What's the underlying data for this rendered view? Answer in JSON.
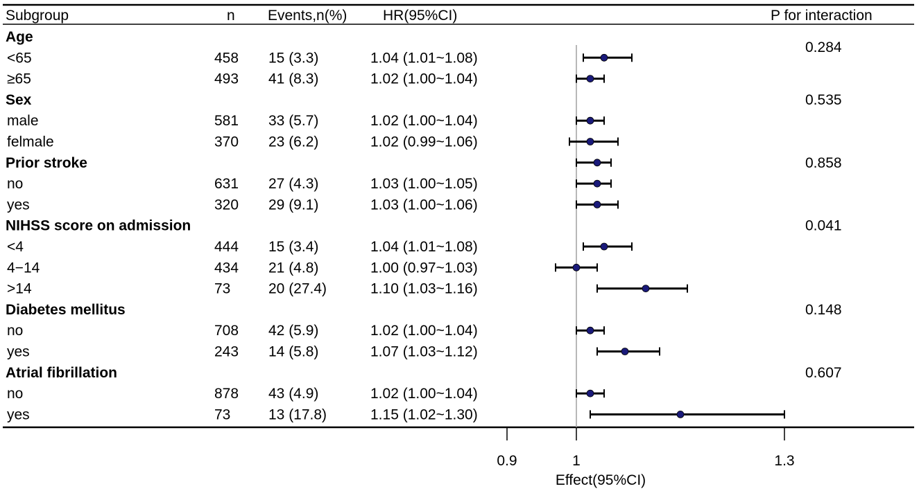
{
  "chart_data": {
    "type": "forest",
    "header": {
      "subgroup": "Subgroup",
      "n": "n",
      "events": "Events,n(%)",
      "hr": "HR(95%CI)",
      "p": "P for interaction"
    },
    "rows": [
      {
        "kind": "group",
        "label": "Age",
        "p": "0.284"
      },
      {
        "kind": "item",
        "label": "<65",
        "n": "458",
        "events": "15 (3.3)",
        "hr_text": "1.04 (1.01~1.08)",
        "hr": 1.04,
        "lo": 1.01,
        "hi": 1.08
      },
      {
        "kind": "item",
        "label": "≥65",
        "n": "493",
        "events": "41 (8.3)",
        "hr_text": "1.02 (1.00~1.04)",
        "hr": 1.02,
        "lo": 1.0,
        "hi": 1.04
      },
      {
        "kind": "group",
        "label": "Sex",
        "p": "0.535"
      },
      {
        "kind": "item",
        "label": "male",
        "n": "581",
        "events": "33 (5.7)",
        "hr_text": "1.02 (1.00~1.04)",
        "hr": 1.02,
        "lo": 1.0,
        "hi": 1.04
      },
      {
        "kind": "item",
        "label": "felmale",
        "n": "370",
        "events": "23 (6.2)",
        "hr_text": "1.02 (0.99~1.06)",
        "hr": 1.02,
        "lo": 0.99,
        "hi": 1.06
      },
      {
        "kind": "group",
        "label": "Prior stroke",
        "p": "0.858",
        "hr": 1.03,
        "lo": 1.0,
        "hi": 1.05
      },
      {
        "kind": "item",
        "label": "no",
        "n": "631",
        "events": "27 (4.3)",
        "hr_text": "1.03 (1.00~1.05)",
        "hr": 1.03,
        "lo": 1.0,
        "hi": 1.05
      },
      {
        "kind": "item",
        "label": "yes",
        "n": "320",
        "events": "29 (9.1)",
        "hr_text": "1.03 (1.00~1.06)",
        "hr": 1.03,
        "lo": 1.0,
        "hi": 1.06
      },
      {
        "kind": "group",
        "label": "NIHSS score on admission",
        "p": "0.041"
      },
      {
        "kind": "item",
        "label": "<4",
        "n": "444",
        "events": "15 (3.4)",
        "hr_text": "1.04 (1.01~1.08)",
        "hr": 1.04,
        "lo": 1.01,
        "hi": 1.08
      },
      {
        "kind": "item",
        "label": "4−14",
        "n": "434",
        "events": "21 (4.8)",
        "hr_text": "1.00 (0.97~1.03)",
        "hr": 1.0,
        "lo": 0.97,
        "hi": 1.03
      },
      {
        "kind": "item",
        "label": ">14",
        "n": "73",
        "events": "20 (27.4)",
        "hr_text": "1.10 (1.03~1.16)",
        "hr": 1.1,
        "lo": 1.03,
        "hi": 1.16
      },
      {
        "kind": "group",
        "label": "Diabetes mellitus",
        "p": "0.148"
      },
      {
        "kind": "item",
        "label": "no",
        "n": "708",
        "events": "42 (5.9)",
        "hr_text": "1.02 (1.00~1.04)",
        "hr": 1.02,
        "lo": 1.0,
        "hi": 1.04
      },
      {
        "kind": "item",
        "label": "yes",
        "n": "243",
        "events": "14 (5.8)",
        "hr_text": "1.07 (1.03~1.12)",
        "hr": 1.07,
        "lo": 1.03,
        "hi": 1.12
      },
      {
        "kind": "group",
        "label": "Atrial fibrillation",
        "p": "0.607"
      },
      {
        "kind": "item",
        "label": "no",
        "n": "878",
        "events": "43 (4.9)",
        "hr_text": "1.02 (1.00~1.04)",
        "hr": 1.02,
        "lo": 1.0,
        "hi": 1.04
      },
      {
        "kind": "item",
        "label": "yes",
        "n": "73",
        "events": "13 (17.8)",
        "hr_text": "1.15 (1.02~1.30)",
        "hr": 1.15,
        "lo": 1.02,
        "hi": 1.3
      }
    ],
    "xaxis": {
      "label": "Effect(95%CI)",
      "ticks": [
        0.9,
        1,
        1.3
      ],
      "tick_labels": [
        "0.9",
        "1",
        "1.3"
      ],
      "range": [
        0.9,
        1.3
      ],
      "reference": 1
    },
    "colors": {
      "point": "#1a1a7a",
      "ci": "#000000",
      "reference_line": "#a0a0a0",
      "rule": "#000000"
    }
  }
}
